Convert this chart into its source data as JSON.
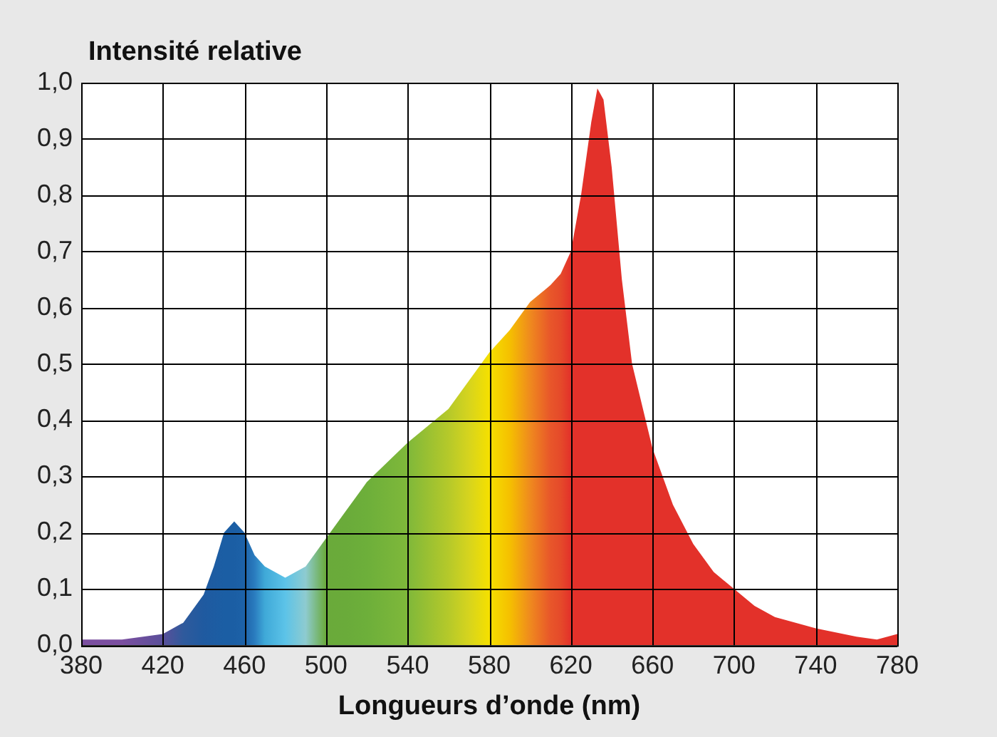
{
  "chart_data": {
    "type": "area",
    "ylabel": "Intensité relative",
    "xlabel": "Longueurs d’onde (nm)",
    "x": [
      380,
      400,
      420,
      430,
      440,
      445,
      450,
      455,
      460,
      465,
      470,
      480,
      490,
      500,
      510,
      520,
      540,
      560,
      570,
      580,
      590,
      600,
      610,
      615,
      620,
      625,
      630,
      633,
      636,
      640,
      645,
      650,
      660,
      670,
      680,
      690,
      700,
      710,
      720,
      740,
      760,
      770,
      780
    ],
    "series": [
      {
        "values": [
          0.01,
          0.01,
          0.02,
          0.04,
          0.09,
          0.14,
          0.2,
          0.22,
          0.2,
          0.16,
          0.14,
          0.12,
          0.14,
          0.19,
          0.24,
          0.29,
          0.36,
          0.42,
          0.47,
          0.52,
          0.56,
          0.61,
          0.64,
          0.66,
          0.7,
          0.8,
          0.93,
          0.99,
          0.97,
          0.85,
          0.65,
          0.5,
          0.35,
          0.25,
          0.18,
          0.13,
          0.1,
          0.07,
          0.05,
          0.03,
          0.015,
          0.01,
          0.02
        ],
        "colors": [
          "#7b4fa0",
          "#7b4fa0",
          "#5a4f9a",
          "#2f5a9c",
          "#1f5aa0",
          "#1d5ca2",
          "#1b5ea4",
          "#1b5ea4",
          "#1d62a8",
          "#2a7cbf",
          "#3fa9d8",
          "#5cc3e8",
          "#8ecbd0",
          "#6aaa3a",
          "#6aab3a",
          "#6daf3a",
          "#7fb83a",
          "#b5c92a",
          "#d6d41e",
          "#f5e000",
          "#f5c000",
          "#ef8a1e",
          "#e8562a",
          "#e54a2a",
          "#e3312a",
          "#e3312a",
          "#e3312a",
          "#e3312a",
          "#e3312a",
          "#e3312a",
          "#e3312a",
          "#e3312a",
          "#e3312a",
          "#e3312a",
          "#e3312a",
          "#e3312a",
          "#e3312a",
          "#e3312a",
          "#e3312a",
          "#e3312a",
          "#e3312a",
          "#e3312a",
          "#e3312a"
        ]
      }
    ],
    "xlim": [
      380,
      780
    ],
    "xticks": [
      380,
      420,
      460,
      500,
      540,
      580,
      620,
      660,
      700,
      740,
      780
    ],
    "ylim": [
      0,
      1
    ],
    "yticks": [
      {
        "value": 0,
        "label": "0,0"
      },
      {
        "value": 0.1,
        "label": "0,1"
      },
      {
        "value": 0.2,
        "label": "0,2"
      },
      {
        "value": 0.3,
        "label": "0,3"
      },
      {
        "value": 0.4,
        "label": "0,4"
      },
      {
        "value": 0.5,
        "label": "0,5"
      },
      {
        "value": 0.6,
        "label": "0,6"
      },
      {
        "value": 0.7,
        "label": "0,7"
      },
      {
        "value": 0.8,
        "label": "0,8"
      },
      {
        "value": 0.9,
        "label": "0,9"
      },
      {
        "value": 1,
        "label": "1,0"
      }
    ],
    "grid": true,
    "legend": false,
    "marker": "none"
  }
}
